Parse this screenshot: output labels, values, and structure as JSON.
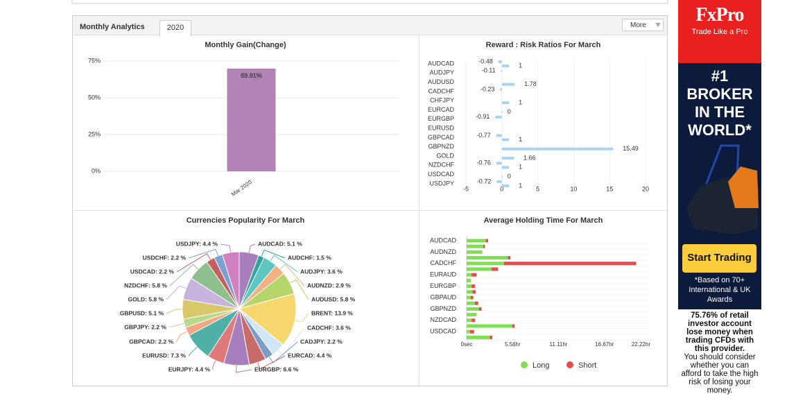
{
  "header": {
    "title": "Monthly Analytics",
    "tab": "2020",
    "more": "More"
  },
  "chart_data": [
    {
      "type": "bar",
      "title": "Monthly Gain(Change)",
      "categories": [
        "Mar 2020"
      ],
      "values": [
        69.91
      ],
      "value_labels": [
        "69.91%"
      ],
      "color": "#b283b4",
      "ylim": [
        0,
        75
      ],
      "yticks": [
        {
          "value": 0,
          "label": "0%"
        },
        {
          "value": 25,
          "label": "25%"
        },
        {
          "value": 50,
          "label": "50%"
        },
        {
          "value": 75,
          "label": "75%"
        }
      ],
      "grid": true
    },
    {
      "type": "hbar",
      "title": "Reward : Risk Ratios For March",
      "categories": [
        "AUDCAD",
        "AUDJPY",
        "AUDUSD",
        "CADCHF",
        "CHFJPY",
        "EURCAD",
        "EURGBP",
        "EURUSD",
        "GBPCAD",
        "GBPNZD",
        "GOLD",
        "NZDCHF",
        "USDCAD",
        "USDJPY"
      ],
      "series": [
        {
          "color": "#a8d3f3",
          "values": [
            -0.48,
            -0.11,
            null,
            -0.23,
            null,
            null,
            -0.91,
            null,
            -0.77,
            null,
            null,
            -0.76,
            null,
            -0.72
          ]
        },
        {
          "color": "#a8d3f3",
          "values": [
            1,
            null,
            1.78,
            null,
            1,
            0,
            null,
            null,
            1,
            15.49,
            1.66,
            1,
            0,
            1
          ]
        }
      ],
      "xlim": [
        -5,
        20
      ],
      "xticks": [
        -5,
        0,
        5,
        10,
        15,
        20
      ],
      "grid": true
    },
    {
      "type": "pie",
      "title": "Currencies Popularity For March",
      "labels": [
        "AUDCAD: 5.1 %",
        "AUDCHF: 1.5 %",
        "AUDJPY: 3.6 %",
        "AUDNZD: 2.9 %",
        "AUDUSD: 5.8 %",
        "BRENT: 13.9 %",
        "CADCHF: 3.6 %",
        "CADJPY: 2.2 %",
        "EURCAD: 4.4 %",
        "EURGBP: 6.6 %",
        "EURJPY: 4.4 %",
        "EURUSD: 7.3 %",
        "GBPCAD: 2.2 %",
        "GBPJPY: 2.2 %",
        "GBPUSD: 5.1 %",
        "GOLD: 5.8 %",
        "NZDCHF: 5.8 %",
        "USDCAD: 2.2 %",
        "USDCHF: 2.2 %",
        "USDJPY: 4.4 %"
      ],
      "values": [
        5.1,
        1.5,
        3.6,
        2.9,
        5.8,
        13.9,
        3.6,
        2.2,
        4.4,
        6.6,
        4.4,
        7.3,
        2.2,
        2.2,
        5.1,
        5.8,
        5.8,
        2.2,
        2.2,
        4.4
      ],
      "colors": [
        "#a77fbd",
        "#2fa3a0",
        "#5ec6c0",
        "#f4b183",
        "#b5d56a",
        "#f5d76e",
        "#cfe6f7",
        "#7a9cc6",
        "#c96a6a",
        "#a77fbd",
        "#e07a7a",
        "#4fb0a8",
        "#f4a582",
        "#b8d98a",
        "#d8c86a",
        "#c7b3dc",
        "#8fbf8f",
        "#c46060",
        "#7c9fd4",
        "#d07fbf"
      ]
    },
    {
      "type": "stacked-hbar",
      "title": "Average Holding Time For March",
      "categories": [
        "AUDCAD",
        null,
        "AUDNZD",
        null,
        "CADCHF",
        null,
        "EURAUD",
        null,
        "EURGBP",
        null,
        "GBPAUD",
        null,
        "GBPNZD",
        null,
        "NZDCAD",
        null,
        "USDCAD",
        null
      ],
      "series": [
        {
          "name": "Long",
          "color": "#7ee04f",
          "values": [
            2.3,
            2.0,
            1.9,
            5.0,
            4.5,
            3.0,
            0.6,
            0.5,
            0.6,
            0.7,
            0.5,
            1.0,
            1.5,
            1.2,
            0.6,
            5.5,
            0.4,
            2.8
          ]
        },
        {
          "name": "Short",
          "color": "#e84a4a",
          "values": [
            0.3,
            0.2,
            0,
            0.3,
            16.0,
            0.8,
            0.6,
            0,
            0.4,
            0.4,
            0.3,
            0.4,
            0.3,
            0,
            0.4,
            0.3,
            0.5,
            0.3
          ]
        }
      ],
      "xlim": [
        0,
        22.22
      ],
      "xticks": [
        {
          "value": 0,
          "label": "0sec"
        },
        {
          "value": 5.56,
          "label": "5.56hr"
        },
        {
          "value": 11.11,
          "label": "11.11hr"
        },
        {
          "value": 16.67,
          "label": "16.67hr"
        },
        {
          "value": 22.22,
          "label": "22.22hr"
        }
      ],
      "grid": true
    }
  ],
  "ad": {
    "brand": "FxPro",
    "tagline": "Trade Like a Pro",
    "headline": "#1 BROKER IN THE WORLD*",
    "button": "Start Trading",
    "note": "*Based on 70+ International & UK Awards",
    "warning_bold": "75.76% of retail investor account lose money when trading CFDs with this provider.",
    "warning": "You should consider whether you can afford to take the high risk of losing your money."
  }
}
